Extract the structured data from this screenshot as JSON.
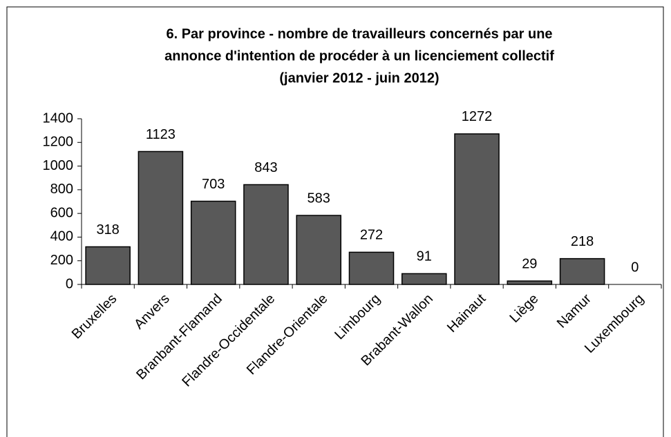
{
  "chart_data": {
    "type": "bar",
    "title": [
      "6. Par province - nombre de travailleurs concernés par une",
      "annonce d'intention de procéder à un licenciement collectif",
      "(janvier 2012 - juin 2012)"
    ],
    "categories": [
      "Bruxelles",
      "Anvers",
      "Branbant-Flamand",
      "Flandre-Occidentale",
      "Flandre-Orientale",
      "Limbourg",
      "Brabant-Wallon",
      "Hainaut",
      "Liège",
      "Namur",
      "Luxembourg"
    ],
    "values": [
      318,
      1123,
      703,
      843,
      583,
      272,
      91,
      1272,
      29,
      218,
      0
    ],
    "color": "#595959",
    "ylim": [
      0,
      1400
    ],
    "yticks": [
      0,
      200,
      400,
      600,
      800,
      1000,
      1200,
      1400
    ],
    "grid": false
  }
}
